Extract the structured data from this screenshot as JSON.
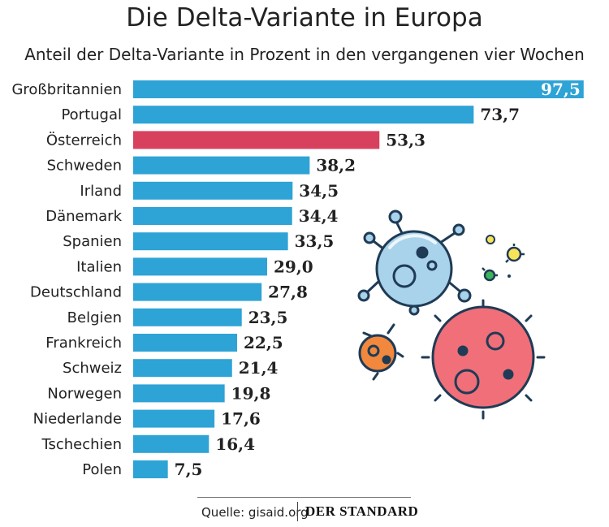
{
  "header": {
    "title": "Die Delta-Variante in Europa",
    "subtitle": "Anteil der Delta-Variante in Prozent in den vergangenen vier Wochen"
  },
  "chart_data": {
    "type": "bar",
    "orientation": "horizontal",
    "title": "Die Delta-Variante in Europa",
    "subtitle": "Anteil der Delta-Variante in Prozent in den vergangenen vier Wochen",
    "categories": [
      "Großbritannien",
      "Portugal",
      "Österreich",
      "Schweden",
      "Irland",
      "Dänemark",
      "Spanien",
      "Italien",
      "Deutschland",
      "Belgien",
      "Frankreich",
      "Schweiz",
      "Norwegen",
      "Niederlande",
      "Tschechien",
      "Polen"
    ],
    "values": [
      97.5,
      73.7,
      53.3,
      38.2,
      34.5,
      34.4,
      33.5,
      29.0,
      27.8,
      23.5,
      22.5,
      21.4,
      19.8,
      17.6,
      16.4,
      7.5
    ],
    "value_labels": [
      "97,5",
      "73,7",
      "53,3",
      "38,2",
      "34,5",
      "34,4",
      "33,5",
      "29,0",
      "27,8",
      "23,5",
      "22,5",
      "21,4",
      "19,8",
      "17,6",
      "16,4",
      "7,5"
    ],
    "highlight": "Österreich",
    "xlim": [
      0,
      100
    ],
    "grid": false,
    "legend": "none",
    "colors": {
      "bar": "#2ea3d6",
      "highlight": "#d8415e"
    }
  },
  "footer": {
    "source": "Quelle: gisaid.org",
    "brand": "DER STANDARD"
  },
  "decoration": {
    "icons": [
      "virus-blue-icon",
      "virus-red-icon",
      "virus-orange-icon",
      "small-yellow-virus-icon",
      "small-green-virus-icon"
    ],
    "colors": {
      "blue": "#a9d3ea",
      "red": "#f06f79",
      "orange": "#f2883d",
      "yellow": "#f6e35a",
      "green": "#3cb55a",
      "outline": "#1f3b55"
    }
  }
}
